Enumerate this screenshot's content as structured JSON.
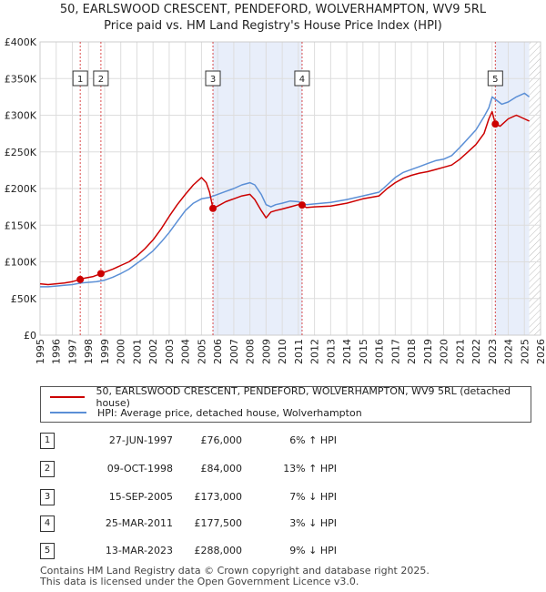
{
  "title_line1": "50, EARLSWOOD CRESCENT, PENDEFORD, WOLVERHAMPTON, WV9 5RL",
  "title_line2": "Price paid vs. HM Land Registry's House Price Index (HPI)",
  "colors": {
    "property": "#cc0000",
    "hpi": "#5b8fd6",
    "shade": "#e8eefa",
    "grid": "#dddddd"
  },
  "chart_data": {
    "type": "line",
    "ylim": [
      0,
      400000
    ],
    "xlim": [
      1995,
      2026
    ],
    "y_ticks": [
      {
        "value": 0,
        "label": "£0"
      },
      {
        "value": 50000,
        "label": "£50K"
      },
      {
        "value": 100000,
        "label": "£100K"
      },
      {
        "value": 150000,
        "label": "£150K"
      },
      {
        "value": 200000,
        "label": "£200K"
      },
      {
        "value": 250000,
        "label": "£250K"
      },
      {
        "value": 300000,
        "label": "£300K"
      },
      {
        "value": 350000,
        "label": "£350K"
      },
      {
        "value": 400000,
        "label": "£400K"
      }
    ],
    "x_ticks": [
      "1995",
      "1996",
      "1997",
      "1998",
      "1999",
      "2000",
      "2001",
      "2002",
      "2003",
      "2004",
      "2005",
      "2006",
      "2007",
      "2008",
      "2009",
      "2010",
      "2011",
      "2012",
      "2013",
      "2014",
      "2015",
      "2016",
      "2017",
      "2018",
      "2019",
      "2020",
      "2021",
      "2022",
      "2023",
      "2024",
      "2025",
      "2026"
    ],
    "shaded_ranges": [
      [
        2005.71,
        2011.23
      ],
      [
        2023.2,
        2025.3
      ]
    ],
    "series": [
      {
        "name": "50, EARLSWOOD CRESCENT, PENDEFORD, WOLVERHAMPTON, WV9 5RL (detached house)",
        "x": [
          1995.0,
          1995.5,
          1996.0,
          1996.5,
          1997.0,
          1997.49,
          1997.8,
          1998.3,
          1998.77,
          1999.0,
          1999.5,
          2000.0,
          2000.5,
          2001.0,
          2001.5,
          2002.0,
          2002.5,
          2003.0,
          2003.5,
          2004.0,
          2004.5,
          2005.0,
          2005.3,
          2005.5,
          2005.71,
          2006.0,
          2006.5,
          2007.0,
          2007.5,
          2008.0,
          2008.3,
          2008.7,
          2009.0,
          2009.3,
          2009.6,
          2010.0,
          2010.5,
          2011.0,
          2011.23,
          2011.5,
          2012.0,
          2013.0,
          2014.0,
          2015.0,
          2016.0,
          2016.5,
          2017.0,
          2017.5,
          2018.0,
          2018.5,
          2019.0,
          2019.5,
          2020.0,
          2020.5,
          2021.0,
          2021.5,
          2022.0,
          2022.5,
          2022.8,
          2023.0,
          2023.2,
          2023.5,
          2024.0,
          2024.5,
          2025.0,
          2025.3
        ],
        "y": [
          70000,
          69000,
          70000,
          71000,
          73000,
          76000,
          78000,
          80000,
          84000,
          86000,
          90000,
          95000,
          100000,
          108000,
          118000,
          130000,
          145000,
          162000,
          178000,
          192000,
          205000,
          215000,
          208000,
          195000,
          173000,
          176000,
          182000,
          186000,
          190000,
          192000,
          185000,
          170000,
          160000,
          168000,
          170000,
          172000,
          175000,
          178000,
          177500,
          174000,
          175000,
          176000,
          180000,
          186000,
          190000,
          200000,
          208000,
          214000,
          218000,
          221000,
          223000,
          226000,
          229000,
          232000,
          240000,
          250000,
          260000,
          275000,
          295000,
          305000,
          288000,
          285000,
          295000,
          300000,
          295000,
          292000
        ]
      },
      {
        "name": "HPI: Average price, detached house, Wolverhampton",
        "x": [
          1995.0,
          1995.5,
          1996.0,
          1996.5,
          1997.0,
          1997.5,
          1998.0,
          1998.5,
          1999.0,
          1999.5,
          2000.0,
          2000.5,
          2001.0,
          2001.5,
          2002.0,
          2002.5,
          2003.0,
          2003.5,
          2004.0,
          2004.5,
          2005.0,
          2005.5,
          2006.0,
          2006.5,
          2007.0,
          2007.5,
          2008.0,
          2008.3,
          2008.7,
          2009.0,
          2009.3,
          2009.6,
          2010.0,
          2010.5,
          2011.0,
          2011.5,
          2012.0,
          2013.0,
          2014.0,
          2015.0,
          2016.0,
          2016.5,
          2017.0,
          2017.5,
          2018.0,
          2018.5,
          2019.0,
          2019.5,
          2020.0,
          2020.5,
          2021.0,
          2021.5,
          2022.0,
          2022.5,
          2022.8,
          2023.0,
          2023.3,
          2023.6,
          2024.0,
          2024.5,
          2025.0,
          2025.3
        ],
        "y": [
          66000,
          66000,
          67000,
          68000,
          69000,
          71000,
          72000,
          73000,
          75000,
          79000,
          84000,
          90000,
          98000,
          106000,
          115000,
          127000,
          140000,
          155000,
          170000,
          180000,
          186000,
          188000,
          192000,
          196000,
          200000,
          205000,
          208000,
          205000,
          192000,
          178000,
          175000,
          178000,
          180000,
          183000,
          182000,
          178000,
          179000,
          181000,
          185000,
          190000,
          195000,
          205000,
          215000,
          222000,
          226000,
          230000,
          234000,
          238000,
          240000,
          245000,
          256000,
          268000,
          280000,
          298000,
          310000,
          325000,
          320000,
          315000,
          318000,
          325000,
          330000,
          325000
        ]
      }
    ],
    "markers": [
      {
        "label": "1",
        "x": 1997.49,
        "y": 76000
      },
      {
        "label": "2",
        "x": 1998.77,
        "y": 84000
      },
      {
        "label": "3",
        "x": 2005.71,
        "y": 173000
      },
      {
        "label": "4",
        "x": 2011.23,
        "y": 177500
      },
      {
        "label": "5",
        "x": 2023.2,
        "y": 288000
      }
    ]
  },
  "legend": {
    "property_label": "50, EARLSWOOD CRESCENT, PENDEFORD, WOLVERHAMPTON, WV9 5RL (detached house)",
    "hpi_label": "HPI: Average price, detached house, Wolverhampton"
  },
  "transactions": [
    {
      "num": "1",
      "date": "27-JUN-1997",
      "price": "£76,000",
      "hpi": "6% ↑ HPI"
    },
    {
      "num": "2",
      "date": "09-OCT-1998",
      "price": "£84,000",
      "hpi": "13% ↑ HPI"
    },
    {
      "num": "3",
      "date": "15-SEP-2005",
      "price": "£173,000",
      "hpi": "7% ↓ HPI"
    },
    {
      "num": "4",
      "date": "25-MAR-2011",
      "price": "£177,500",
      "hpi": "3% ↓ HPI"
    },
    {
      "num": "5",
      "date": "13-MAR-2023",
      "price": "£288,000",
      "hpi": "9% ↓ HPI"
    }
  ],
  "footer": {
    "line1": "Contains HM Land Registry data © Crown copyright and database right 2025.",
    "line2": "This data is licensed under the Open Government Licence v3.0."
  }
}
